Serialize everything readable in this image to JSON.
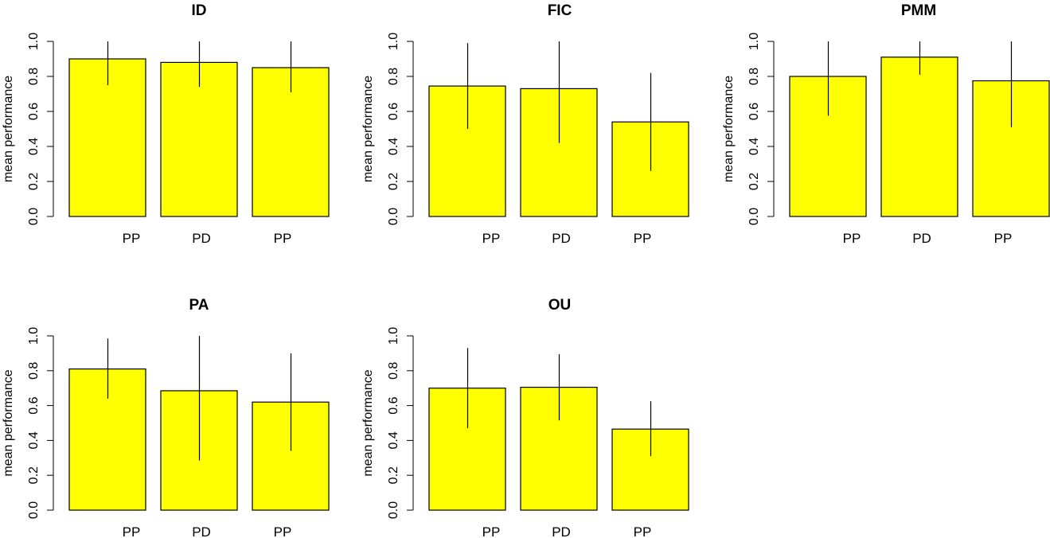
{
  "chart_data": [
    {
      "type": "bar",
      "title": "ID",
      "ylabel": "mean performance",
      "categories": [
        "PP",
        "PD",
        "PP"
      ],
      "values": [
        0.9,
        0.88,
        0.85
      ],
      "error_low": [
        0.75,
        0.74,
        0.71
      ],
      "error_high": [
        1.0,
        1.0,
        1.0
      ],
      "ylim": [
        0,
        1
      ],
      "yticks": [
        "0.0",
        "0.2",
        "0.4",
        "0.6",
        "0.8",
        "1.0"
      ],
      "bar_color": "#ffff00"
    },
    {
      "type": "bar",
      "title": "FIC",
      "ylabel": "mean performance",
      "categories": [
        "PP",
        "PD",
        "PP"
      ],
      "values": [
        0.745,
        0.73,
        0.54
      ],
      "error_low": [
        0.5,
        0.42,
        0.26
      ],
      "error_high": [
        0.99,
        1.0,
        0.82
      ],
      "ylim": [
        0,
        1
      ],
      "yticks": [
        "0.0",
        "0.2",
        "0.4",
        "0.6",
        "0.8",
        "1.0"
      ],
      "bar_color": "#ffff00"
    },
    {
      "type": "bar",
      "title": "PMM",
      "ylabel": "mean performance",
      "categories": [
        "PP",
        "PD",
        "PP"
      ],
      "values": [
        0.8,
        0.91,
        0.775
      ],
      "error_low": [
        0.575,
        0.81,
        0.51
      ],
      "error_high": [
        1.0,
        1.0,
        1.0
      ],
      "ylim": [
        0,
        1
      ],
      "yticks": [
        "0.0",
        "0.2",
        "0.4",
        "0.6",
        "0.8",
        "1.0"
      ],
      "bar_color": "#ffff00"
    },
    {
      "type": "bar",
      "title": "PA",
      "ylabel": "mean performance",
      "categories": [
        "PP",
        "PD",
        "PP"
      ],
      "values": [
        0.81,
        0.685,
        0.62
      ],
      "error_low": [
        0.64,
        0.285,
        0.34
      ],
      "error_high": [
        0.985,
        1.0,
        0.9
      ],
      "ylim": [
        0,
        1
      ],
      "yticks": [
        "0.0",
        "0.2",
        "0.4",
        "0.6",
        "0.8",
        "1.0"
      ],
      "bar_color": "#ffff00"
    },
    {
      "type": "bar",
      "title": "OU",
      "ylabel": "mean performance",
      "categories": [
        "PP",
        "PD",
        "PP"
      ],
      "values": [
        0.7,
        0.705,
        0.465
      ],
      "error_low": [
        0.47,
        0.515,
        0.31
      ],
      "error_high": [
        0.93,
        0.895,
        0.625
      ],
      "ylim": [
        0,
        1
      ],
      "yticks": [
        "0.0",
        "0.2",
        "0.4",
        "0.6",
        "0.8",
        "1.0"
      ],
      "bar_color": "#ffff00"
    }
  ]
}
